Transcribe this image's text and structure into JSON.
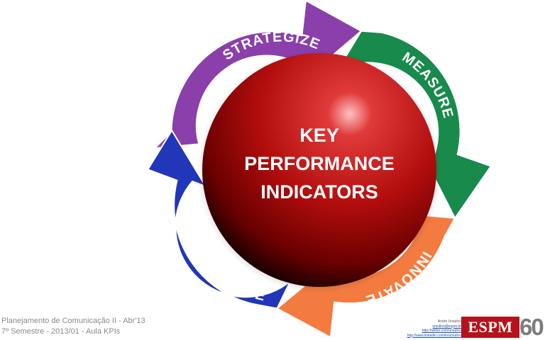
{
  "diagram": {
    "center": {
      "lines": [
        "KEY",
        "PERFORMANCE",
        "INDICATORS"
      ]
    },
    "steps": [
      {
        "label": "STRATEGIZE",
        "color": "#8a3fab"
      },
      {
        "label": "MEASURE",
        "color": "#178a4c"
      },
      {
        "label": "INNOVATE",
        "color": "#f47b3f"
      },
      {
        "label": "PROPAGATE",
        "color": "#2136b8"
      }
    ]
  },
  "footer": {
    "line1": "Planejamento de Comunicação II - Abr'13",
    "line2": "7º Semestre - 2013/01 - Aula KPIs"
  },
  "credits": {
    "name": "André Ursulino",
    "links": [
      "ursulino@espm.br",
      "http://twitter.com/ursulino",
      "http://www.linkedin.com/in/ursulino"
    ]
  },
  "logo": {
    "text": "ESPM",
    "number": "60"
  }
}
